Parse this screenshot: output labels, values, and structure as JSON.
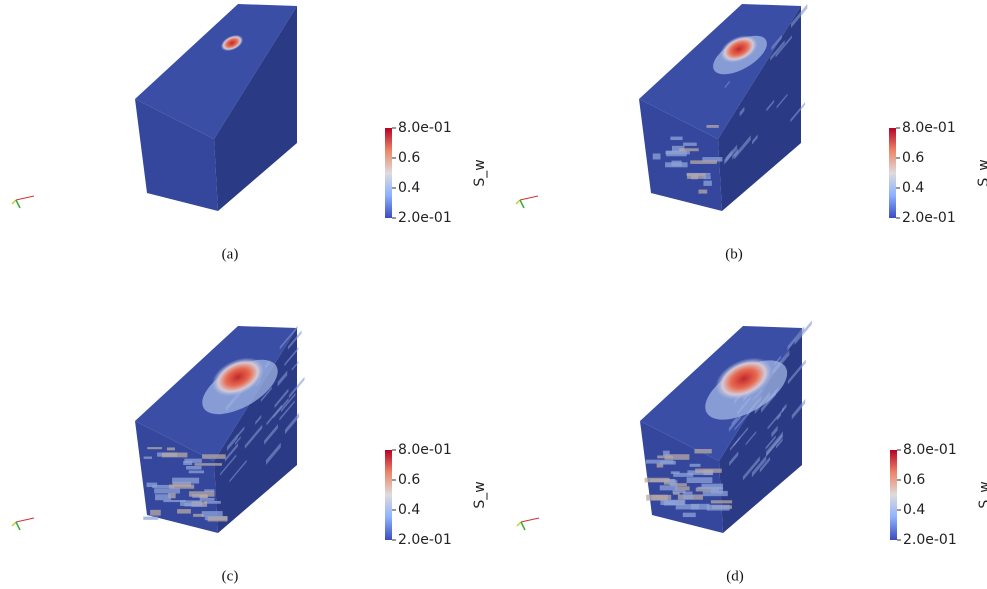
{
  "panels": [
    {
      "caption": "(a)",
      "colorbar": {
        "title": "S_w",
        "ticks": [
          "8.0e-01",
          "0.6",
          "0.4",
          "2.0e-01"
        ]
      }
    },
    {
      "caption": "(b)",
      "colorbar": {
        "title": "S_w",
        "ticks": [
          "8.0e-01",
          "0.6",
          "0.4",
          "2.0e-01"
        ]
      }
    },
    {
      "caption": "(c)",
      "colorbar": {
        "title": "S_w",
        "ticks": [
          "8.0e-01",
          "0.6",
          "0.4",
          "2.0e-01"
        ]
      }
    },
    {
      "caption": "(d)",
      "colorbar": {
        "title": "S_w",
        "ticks": [
          "8.0e-01",
          "0.6",
          "0.4",
          "2.0e-01"
        ]
      }
    }
  ]
}
